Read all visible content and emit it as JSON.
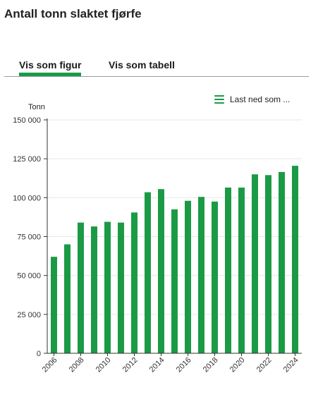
{
  "title": "Antall tonn slaktet fjørfe",
  "tabs": [
    {
      "label": "Vis som figur",
      "active": true
    },
    {
      "label": "Vis som tabell",
      "active": false
    }
  ],
  "download": {
    "label": "Last ned som ...",
    "icon": "menu-icon"
  },
  "colors": {
    "accent": "#1b9a45",
    "bar": "#1b9a45"
  },
  "chart_data": {
    "type": "bar",
    "ylabel": "Tonn",
    "ylim": [
      0,
      150000
    ],
    "yticks": [
      "0",
      "25 000",
      "50 000",
      "75 000",
      "100 000",
      "125 000",
      "150 000"
    ],
    "ytick_values": [
      0,
      25000,
      50000,
      75000,
      100000,
      125000,
      150000
    ],
    "xtick_labels": [
      "2006",
      "2008",
      "2010",
      "2012",
      "2014",
      "2016",
      "2018",
      "2020",
      "2022",
      "2024"
    ],
    "categories": [
      "2006",
      "2007",
      "2008",
      "2009",
      "2010",
      "2011",
      "2012",
      "2013",
      "2014",
      "2015",
      "2016",
      "2017",
      "2018",
      "2019",
      "2020",
      "2021",
      "2022",
      "2023",
      "2024"
    ],
    "values": [
      62000,
      70000,
      84000,
      81500,
      84500,
      84000,
      90500,
      103500,
      105500,
      92500,
      98000,
      100500,
      97500,
      106500,
      106500,
      115000,
      114500,
      116500,
      120500
    ],
    "grid": true,
    "legend": "none"
  }
}
